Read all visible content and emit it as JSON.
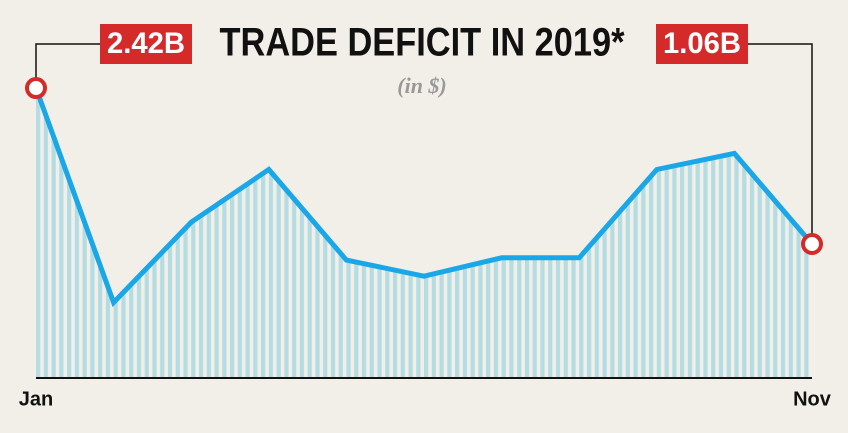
{
  "chart_data": {
    "type": "line",
    "title": "TRADE DEFICIT IN 2019*",
    "subtitle": "(in $)",
    "categories": [
      "Jan",
      null,
      null,
      null,
      null,
      null,
      null,
      null,
      null,
      null,
      "Nov"
    ],
    "values": [
      2.42,
      0.55,
      1.25,
      1.71,
      0.92,
      0.78,
      0.94,
      0.94,
      1.71,
      1.85,
      1.06
    ],
    "value_labels": [
      "2.42B",
      null,
      null,
      null,
      null,
      null,
      null,
      null,
      null,
      null,
      "1.06B"
    ],
    "ylim": [
      0,
      2.6
    ],
    "color": "#1aa7e8",
    "fill_color": "#b3dde3",
    "label_color": "#d42a2a"
  }
}
